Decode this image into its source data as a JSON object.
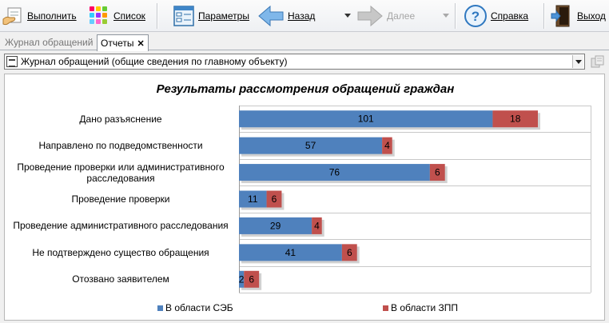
{
  "toolbar": {
    "run_label": "Выполнить",
    "list_label": "Список",
    "params_label": "Параметры",
    "back_label": "Назад",
    "forward_label": "Далее",
    "help_label": "Справка",
    "exit_label": "Выход"
  },
  "tabs": [
    {
      "label": "Журнал обращений",
      "active": false
    },
    {
      "label": "Отчеты",
      "active": true
    }
  ],
  "report_selector": {
    "value": "Журнал обращений (общие сведения по главному объекту)"
  },
  "colors": {
    "series1": "#4f81bd",
    "series2": "#c0504d"
  },
  "chart_data": {
    "type": "bar",
    "orientation": "horizontal",
    "stacked": true,
    "title": "Результаты рассмотрения  обращений граждан",
    "categories": [
      "Дано разъяснение",
      "Направлено по подведомственности",
      "Проведение проверки или административного расследования",
      "Проведение проверки",
      "Проведение административного расследования",
      "Не подтверждено существо обращения",
      "Отозвано заявителем"
    ],
    "series": [
      {
        "name": "В области СЭБ",
        "values": [
          101,
          57,
          76,
          11,
          29,
          41,
          2
        ]
      },
      {
        "name": "В области ЗПП",
        "values": [
          18,
          4,
          6,
          6,
          4,
          6,
          6
        ]
      }
    ],
    "xlim": [
      0,
      140
    ],
    "grid": true,
    "legend_position": "bottom"
  }
}
